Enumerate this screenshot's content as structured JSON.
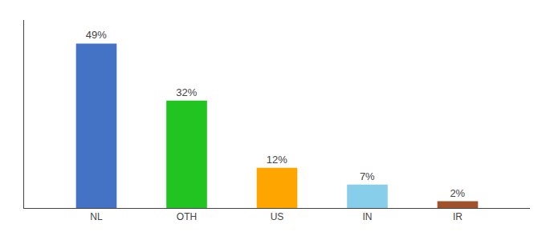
{
  "chart_data": {
    "type": "bar",
    "categories": [
      "NL",
      "OTH",
      "US",
      "IN",
      "IR"
    ],
    "values": [
      49,
      32,
      12,
      7,
      2
    ],
    "value_labels": [
      "49%",
      "32%",
      "12%",
      "7%",
      "2%"
    ],
    "colors": [
      "#4472c4",
      "#22c422",
      "#ffa500",
      "#87ceeb",
      "#a0522d"
    ],
    "ylim": [
      0,
      56
    ],
    "grid": false,
    "data_labels": true,
    "tick_labels": "x"
  }
}
